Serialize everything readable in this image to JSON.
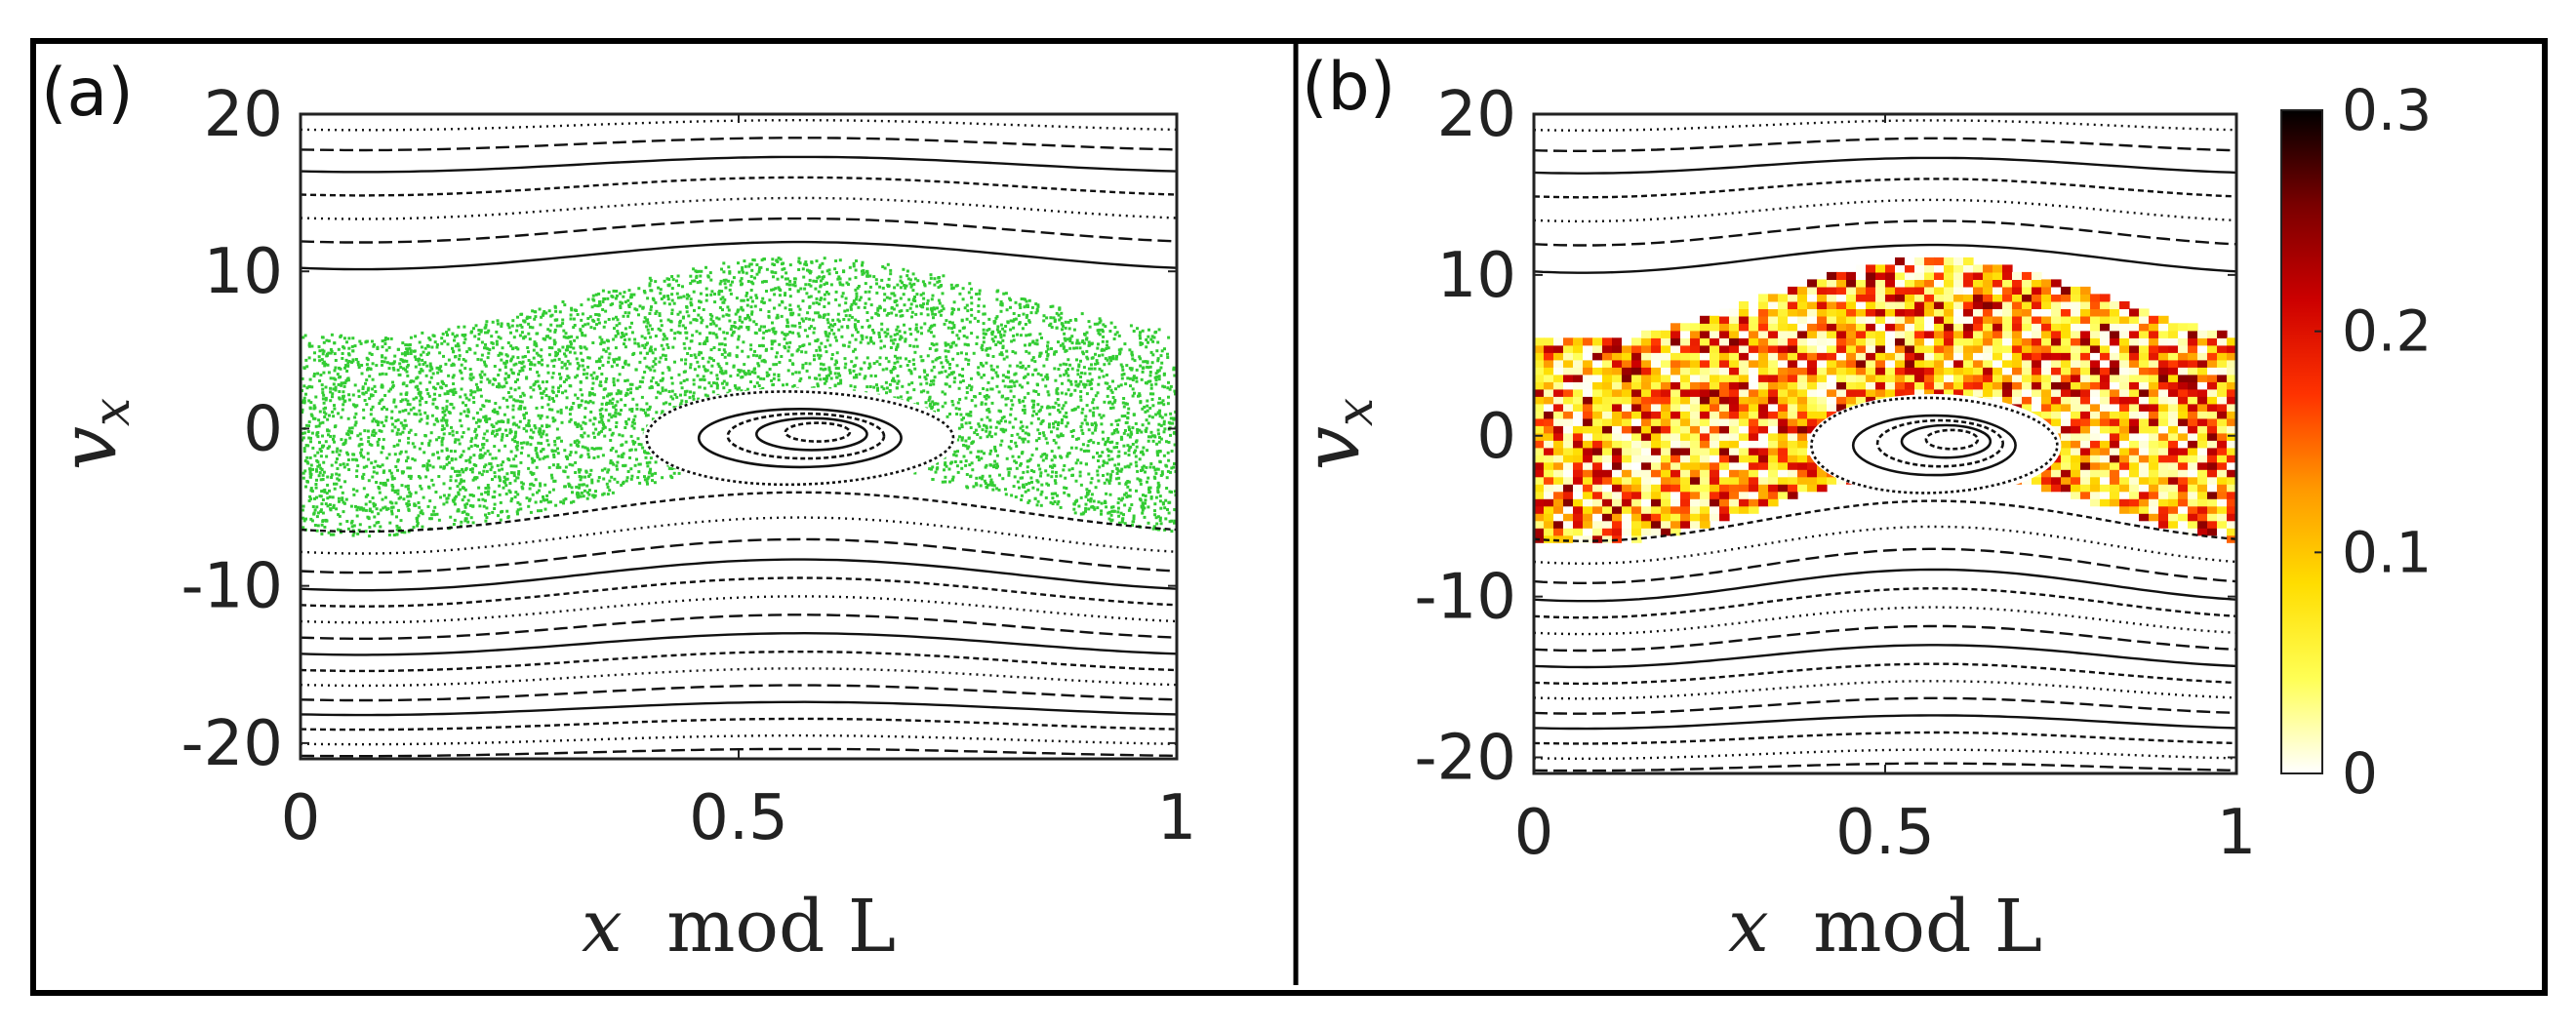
{
  "figure": {
    "panels": [
      {
        "id": "a",
        "label": "(a)"
      },
      {
        "id": "b",
        "label": "(b)"
      }
    ]
  },
  "colors": {
    "frame": "#000000",
    "curve": "#111111",
    "chaos_a": "#33cc33",
    "colormap": [
      "#ffffff",
      "#ffff55",
      "#ffdd00",
      "#ff9900",
      "#ff3300",
      "#cc0000",
      "#7a0000",
      "#000000"
    ]
  },
  "chart_data": [
    {
      "panel": "a",
      "type": "scatter",
      "title": "",
      "xlabel_var": "x",
      "xlabel_text": "mod L",
      "ylabel_var": "v",
      "ylabel_sub": "x",
      "xlim": [
        0,
        1
      ],
      "ylim": [
        -21,
        20
      ],
      "xticks": [
        0,
        0.5,
        1
      ],
      "xtick_labels": [
        "0",
        "0.5",
        "1"
      ],
      "yticks": [
        20,
        10,
        0,
        -10,
        -20
      ],
      "ytick_labels": [
        "20",
        "10",
        "0",
        "-10",
        "-20"
      ],
      "series": [
        {
          "name": "chaotic sea",
          "color_key": "chaos_a",
          "v_lower_edge": -4.5,
          "v_upper_edge": 8.5,
          "wave_amplitude": 2.5
        },
        {
          "name": "passing orbits",
          "color": "#111111",
          "levels": [
            19.3,
            18.1,
            16.8,
            15.4,
            14.0,
            12.6,
            11.0,
            -5.3,
            -6.8,
            -8.1,
            -9.3,
            -10.4,
            -11.5,
            -12.6,
            -13.7,
            -14.8,
            -15.8,
            -16.8,
            -17.8,
            -18.8,
            -19.8,
            -20.6
          ]
        },
        {
          "name": "trapped island",
          "center_x": 0.57,
          "center_v": -0.6,
          "nested_orbits": 4
        }
      ]
    },
    {
      "panel": "b",
      "type": "heatmap",
      "title": "",
      "xlabel_var": "x",
      "xlabel_text": "mod L",
      "ylabel_var": "v",
      "ylabel_sub": "x",
      "xlim": [
        0,
        1
      ],
      "ylim": [
        -21,
        20
      ],
      "xticks": [
        0,
        0.5,
        1
      ],
      "xtick_labels": [
        "0",
        "0.5",
        "1"
      ],
      "yticks": [
        20,
        10,
        0,
        -10,
        -20
      ],
      "ytick_labels": [
        "20",
        "10",
        "0",
        "-10",
        "-20"
      ],
      "colorbar": {
        "range": [
          0,
          0.3
        ],
        "ticks": [
          0,
          0.1,
          0.2,
          0.3
        ],
        "tick_labels": [
          "0",
          "0.1",
          "0.2",
          "0.3"
        ]
      },
      "series": [
        {
          "name": "chaotic sea density",
          "value_range": [
            0,
            0.3
          ],
          "v_lower_edge": -4.5,
          "v_upper_edge": 8.5,
          "wave_amplitude": 2.5
        },
        {
          "name": "passing orbits",
          "color": "#111111",
          "levels": [
            19.3,
            18.1,
            16.8,
            15.4,
            14.0,
            12.6,
            11.0,
            -5.3,
            -6.8,
            -8.1,
            -9.3,
            -10.4,
            -11.5,
            -12.6,
            -13.7,
            -14.8,
            -15.8,
            -16.8,
            -17.8,
            -18.8,
            -19.8,
            -20.6
          ]
        },
        {
          "name": "trapped island",
          "center_x": 0.57,
          "center_v": -0.6,
          "nested_orbits": 4
        }
      ]
    }
  ]
}
